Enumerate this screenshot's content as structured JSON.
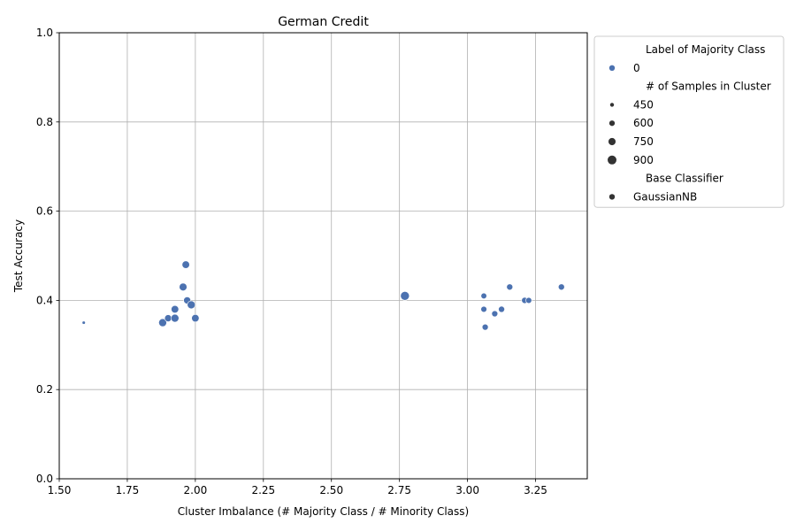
{
  "chart_data": {
    "type": "scatter",
    "title": "German Credit",
    "xlabel": "Cluster Imbalance (# Majority Class / # Minority Class)",
    "ylabel": "Test Accuracy",
    "xlim": [
      1.5,
      3.44
    ],
    "ylim": [
      0.0,
      1.0
    ],
    "grid": true,
    "x_ticks": [
      "1.50",
      "1.75",
      "2.00",
      "2.25",
      "2.50",
      "2.75",
      "3.00",
      "3.25"
    ],
    "y_ticks": [
      "0.0",
      "0.2",
      "0.4",
      "0.6",
      "0.8",
      "1.0"
    ],
    "marker_color": "#4c72b0",
    "size_range": [
      450,
      900
    ],
    "points": [
      {
        "x": 1.59,
        "y": 0.35,
        "size": 390
      },
      {
        "x": 1.88,
        "y": 0.35,
        "size": 820
      },
      {
        "x": 1.9,
        "y": 0.36,
        "size": 740
      },
      {
        "x": 1.925,
        "y": 0.38,
        "size": 780
      },
      {
        "x": 1.925,
        "y": 0.36,
        "size": 820
      },
      {
        "x": 1.955,
        "y": 0.43,
        "size": 800
      },
      {
        "x": 1.965,
        "y": 0.48,
        "size": 780
      },
      {
        "x": 1.97,
        "y": 0.4,
        "size": 740
      },
      {
        "x": 1.985,
        "y": 0.39,
        "size": 820
      },
      {
        "x": 2.0,
        "y": 0.36,
        "size": 780
      },
      {
        "x": 2.77,
        "y": 0.41,
        "size": 900
      },
      {
        "x": 3.06,
        "y": 0.41,
        "size": 620
      },
      {
        "x": 3.06,
        "y": 0.38,
        "size": 640
      },
      {
        "x": 3.065,
        "y": 0.34,
        "size": 650
      },
      {
        "x": 3.1,
        "y": 0.37,
        "size": 650
      },
      {
        "x": 3.125,
        "y": 0.38,
        "size": 660
      },
      {
        "x": 3.155,
        "y": 0.43,
        "size": 660
      },
      {
        "x": 3.21,
        "y": 0.4,
        "size": 660
      },
      {
        "x": 3.225,
        "y": 0.4,
        "size": 640
      },
      {
        "x": 3.345,
        "y": 0.43,
        "size": 660
      }
    ],
    "legend": {
      "placement": "outside-right-top",
      "sections": [
        {
          "title": "Label of Majority Class",
          "entries": [
            {
              "label": "0",
              "kind": "color"
            }
          ]
        },
        {
          "title": "# of Samples in Cluster",
          "entries": [
            {
              "label": "450",
              "kind": "size",
              "size": 450
            },
            {
              "label": "600",
              "kind": "size",
              "size": 600
            },
            {
              "label": "750",
              "kind": "size",
              "size": 750
            },
            {
              "label": "900",
              "kind": "size",
              "size": 900
            }
          ]
        },
        {
          "title": "Base Classifier",
          "entries": [
            {
              "label": "GaussianNB",
              "kind": "marker"
            }
          ]
        }
      ]
    }
  }
}
